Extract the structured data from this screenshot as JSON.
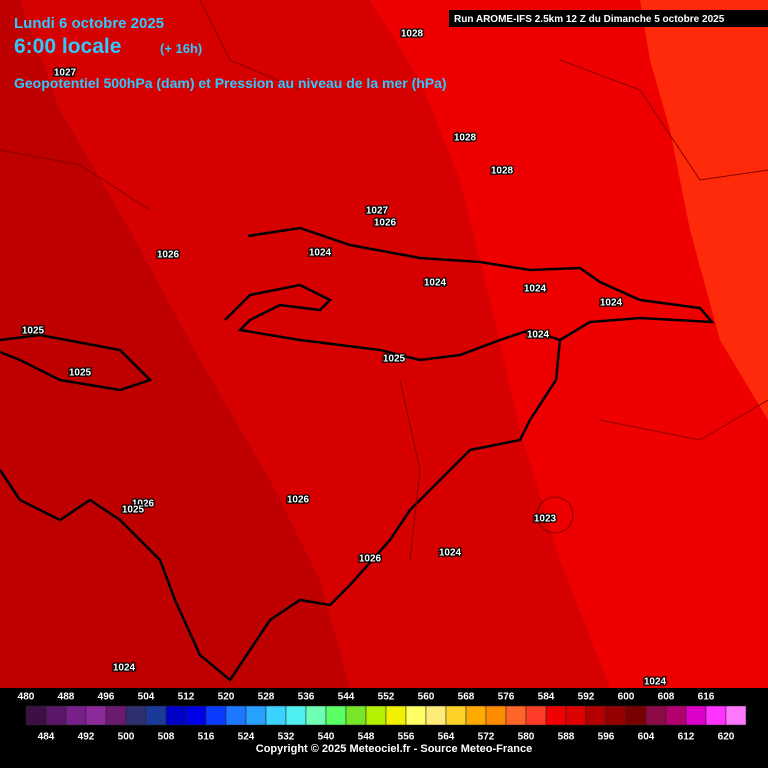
{
  "header": {
    "date": "Lundi 6 octobre 2025",
    "time": "6:00 locale",
    "offset": "(+ 16h)",
    "subtitle": "Geopotentiel 500hPa (dam) et Pression au niveau de la mer (hPa)",
    "run": "Run AROME-IFS 2.5km 12 Z du Dimanche 5 octobre 2025"
  },
  "pressure_labels": [
    "1028",
    "1027",
    "1028",
    "1028",
    "1027",
    "1026",
    "1026",
    "1024",
    "1024",
    "1024",
    "1024",
    "1025",
    "1024",
    "1025",
    "1025",
    "1026",
    "1025",
    "1026",
    "1023",
    "1024",
    "1026",
    "1024",
    "1024"
  ],
  "scale": [
    {
      "value": 480,
      "color": "#3d0f45"
    },
    {
      "value": 484,
      "color": "#5a1668"
    },
    {
      "value": 488,
      "color": "#781f8a"
    },
    {
      "value": 492,
      "color": "#8c2a9a"
    },
    {
      "value": 496,
      "color": "#6b1a70"
    },
    {
      "value": 500,
      "color": "#2e3070"
    },
    {
      "value": 504,
      "color": "#1a3a9a"
    },
    {
      "value": 508,
      "color": "#0000c8"
    },
    {
      "value": 512,
      "color": "#0000e6"
    },
    {
      "value": 516,
      "color": "#0a3cff"
    },
    {
      "value": 520,
      "color": "#1e78ff"
    },
    {
      "value": 524,
      "color": "#28a0ff"
    },
    {
      "value": 528,
      "color": "#3cd2ff"
    },
    {
      "value": 532,
      "color": "#50f0f0"
    },
    {
      "value": 536,
      "color": "#6effb4"
    },
    {
      "value": 540,
      "color": "#5aff64"
    },
    {
      "value": 544,
      "color": "#78e628"
    },
    {
      "value": 548,
      "color": "#b4f000"
    },
    {
      "value": 552,
      "color": "#f0f000"
    },
    {
      "value": 556,
      "color": "#ffff64"
    },
    {
      "value": 560,
      "color": "#ffeb78"
    },
    {
      "value": 564,
      "color": "#ffd228"
    },
    {
      "value": 568,
      "color": "#ffaa00"
    },
    {
      "value": 572,
      "color": "#ff8c00"
    },
    {
      "value": 576,
      "color": "#ff6428"
    },
    {
      "value": 580,
      "color": "#ff3c28"
    },
    {
      "value": 584,
      "color": "#f00000"
    },
    {
      "value": 588,
      "color": "#dc0000"
    },
    {
      "value": 592,
      "color": "#b40000"
    },
    {
      "value": 596,
      "color": "#960000"
    },
    {
      "value": 600,
      "color": "#780000"
    },
    {
      "value": 604,
      "color": "#8c0a46"
    },
    {
      "value": 608,
      "color": "#b4006e"
    },
    {
      "value": 612,
      "color": "#dc00c8"
    },
    {
      "value": 616,
      "color": "#ff32ff"
    },
    {
      "value": 620,
      "color": "#ff78ff"
    }
  ],
  "footer": {
    "copyright": "Copyright © 2025 Meteociel.fr - Source Meteo-France"
  }
}
